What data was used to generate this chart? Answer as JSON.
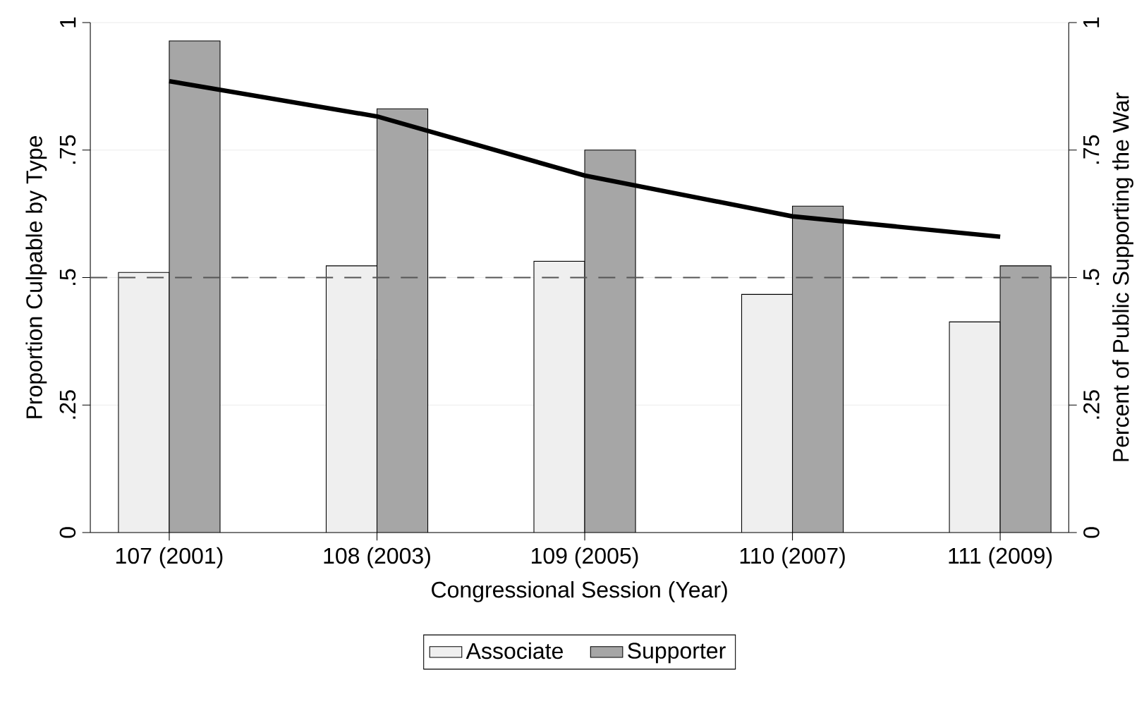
{
  "chart_data": {
    "type": "bar",
    "xlabel": "Congressional Session (Year)",
    "ylabel": "Proportion Culpable by Type",
    "y2label": "Percent of Public Supporting the War",
    "categories": [
      "107 (2001)",
      "108 (2003)",
      "109 (2005)",
      "110 (2007)",
      "111 (2009)"
    ],
    "series": [
      {
        "name": "Associate",
        "color": "#efefef",
        "values": [
          0.51,
          0.523,
          0.532,
          0.467,
          0.413
        ]
      },
      {
        "name": "Supporter",
        "color": "#a6a6a6",
        "values": [
          0.964,
          0.831,
          0.75,
          0.64,
          0.523
        ]
      },
      {
        "type": "line",
        "axis": "y2",
        "color": "#000000",
        "values": [
          0.885,
          0.816,
          0.7,
          0.62,
          0.58
        ]
      }
    ],
    "ylim": [
      0,
      1
    ],
    "yticks": [
      0,
      {
        "value": 0.25,
        "label": ".25"
      },
      {
        "value": 0.5,
        "label": ".5"
      },
      {
        "value": 0.75,
        "label": ".75"
      },
      1
    ],
    "y2lim": [
      0,
      1
    ],
    "y2ticks": [
      0,
      {
        "value": 0.25,
        "label": ".25"
      },
      {
        "value": 0.5,
        "label": ".5"
      },
      {
        "value": 0.75,
        "label": ".75"
      },
      1
    ],
    "ref_lines": [
      {
        "axis": "y",
        "value": 0.5,
        "color": "#555555",
        "line_style": "dashed"
      }
    ],
    "grid": "y",
    "legend": "bottom"
  }
}
